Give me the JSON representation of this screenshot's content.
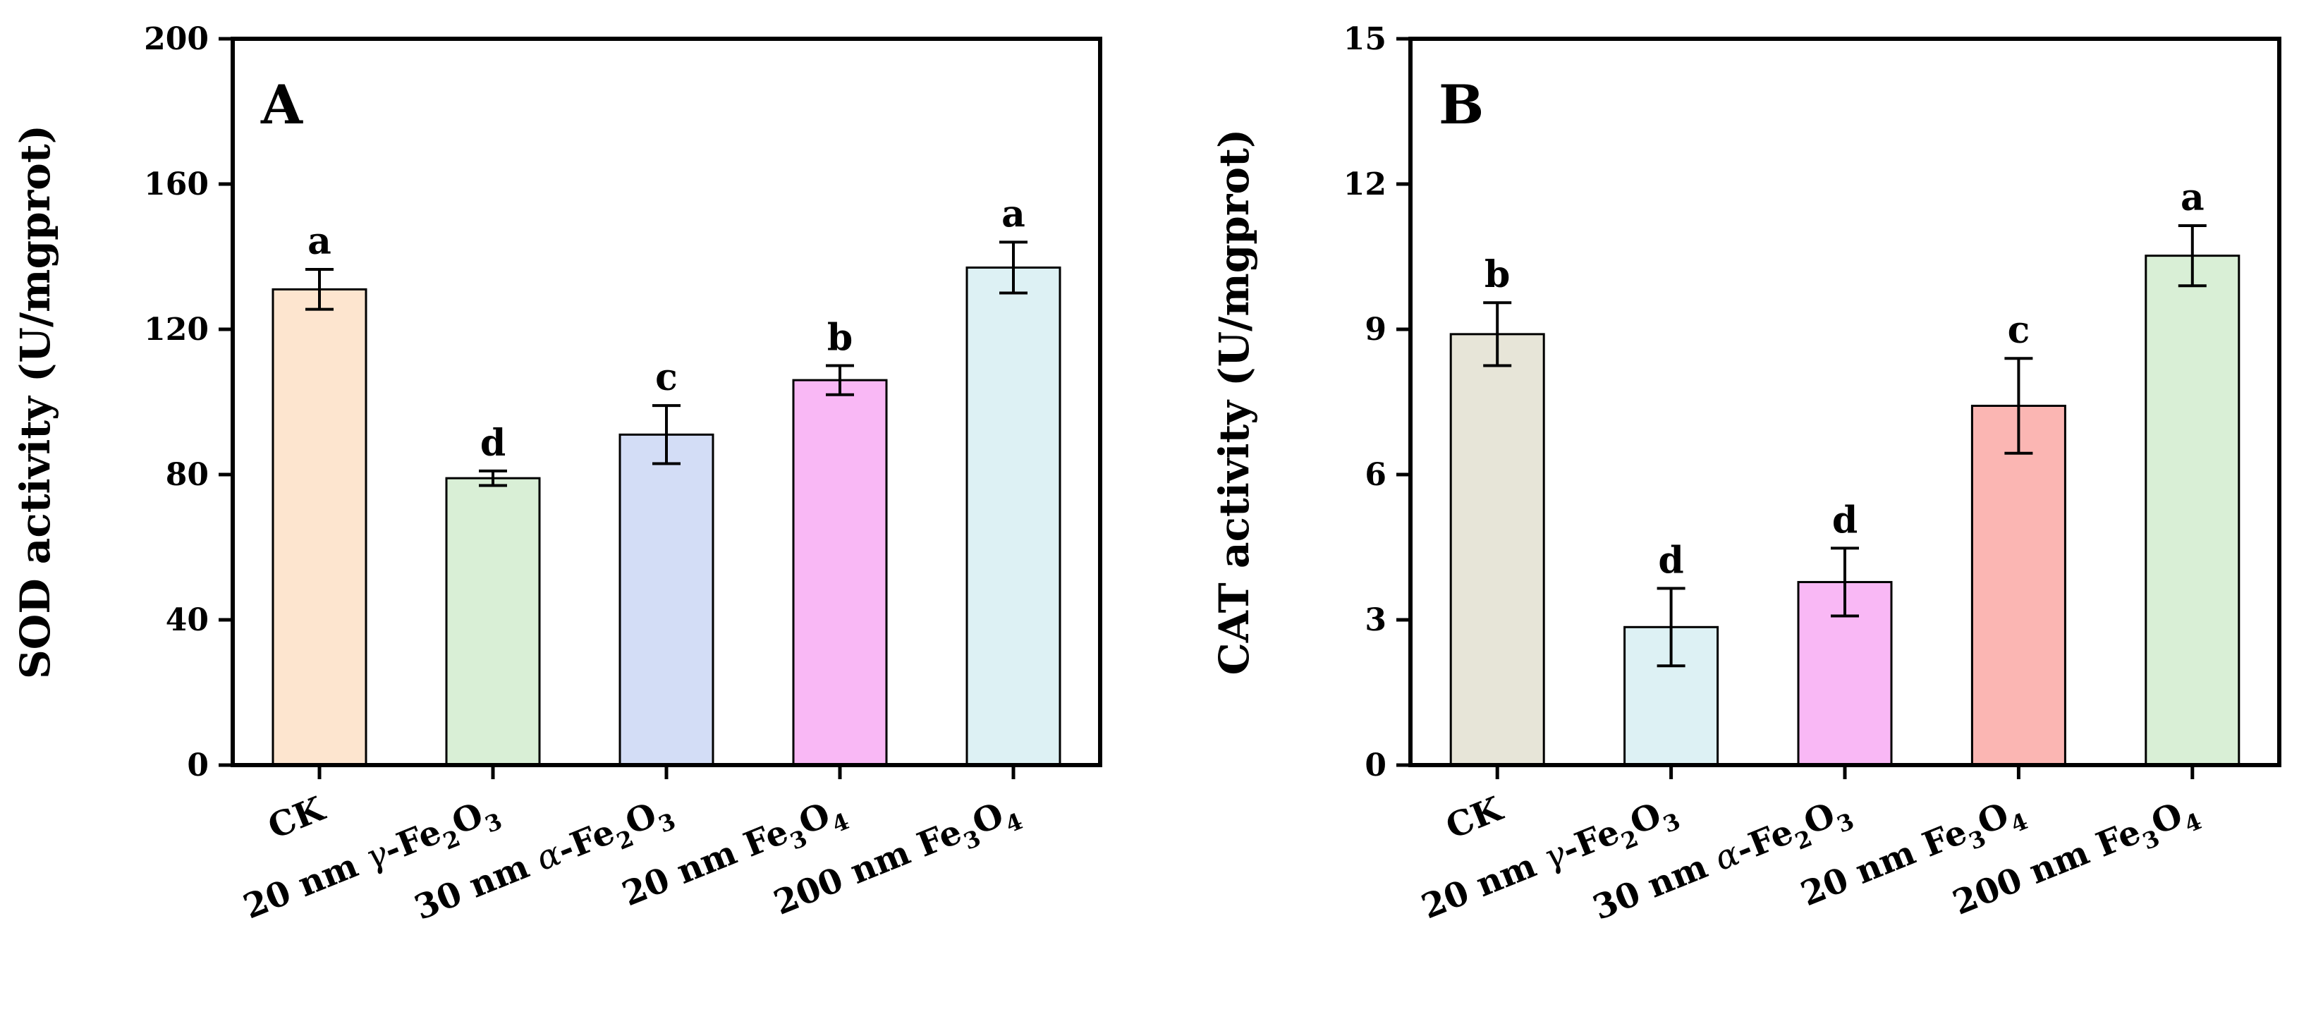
{
  "chart_data": [
    {
      "type": "bar",
      "panel_label": "A",
      "ylabel": "SOD activity (U/mgprot)",
      "xlabel": "",
      "ylim": [
        0,
        200
      ],
      "yticks": [
        "0",
        "40",
        "80",
        "120",
        "160",
        "200"
      ],
      "categories": [
        {
          "label": "CK"
        },
        {
          "label": "20 nm γ-Fe₂O₃",
          "pre": "20 nm ",
          "greek": "γ",
          "parts": [
            {
              "t": "-Fe"
            },
            {
              "t": "2",
              "sub": true
            },
            {
              "t": "O"
            },
            {
              "t": "3",
              "sub": true
            }
          ]
        },
        {
          "label": "30 nm α-Fe₂O₃",
          "pre": "30 nm ",
          "greek": "α",
          "parts": [
            {
              "t": "-Fe"
            },
            {
              "t": "2",
              "sub": true
            },
            {
              "t": "O"
            },
            {
              "t": "3",
              "sub": true
            }
          ]
        },
        {
          "label": "20 nm Fe₃O₄",
          "pre": "20 nm ",
          "greek": "",
          "parts": [
            {
              "t": "Fe"
            },
            {
              "t": "3",
              "sub": true
            },
            {
              "t": "O"
            },
            {
              "t": "4",
              "sub": true
            }
          ]
        },
        {
          "label": "200 nm Fe₃O₄",
          "pre": "200 nm ",
          "greek": "",
          "parts": [
            {
              "t": "Fe"
            },
            {
              "t": "3",
              "sub": true
            },
            {
              "t": "O"
            },
            {
              "t": "4",
              "sub": true
            }
          ]
        }
      ],
      "values": [
        131,
        79,
        91,
        106,
        137
      ],
      "errors": [
        5.5,
        2,
        8,
        4,
        7
      ],
      "significance": [
        "a",
        "d",
        "c",
        "b",
        "a"
      ],
      "colors": [
        "#fde5cf",
        "#d9efd6",
        "#d3ddf6",
        "#f9b8f5",
        "#ddf1f4"
      ]
    },
    {
      "type": "bar",
      "panel_label": "B",
      "ylabel": "CAT activity (U/mgprot)",
      "xlabel": "",
      "ylim": [
        0,
        15
      ],
      "yticks": [
        "0",
        "3",
        "6",
        "9",
        "12",
        "15"
      ],
      "categories": [
        {
          "label": "CK"
        },
        {
          "label": "20 nm γ-Fe₂O₃",
          "pre": "20 nm ",
          "greek": "γ",
          "parts": [
            {
              "t": "-Fe"
            },
            {
              "t": "2",
              "sub": true
            },
            {
              "t": "O"
            },
            {
              "t": "3",
              "sub": true
            }
          ]
        },
        {
          "label": "30 nm α-Fe₂O₃",
          "pre": "30 nm ",
          "greek": "α",
          "parts": [
            {
              "t": "-Fe"
            },
            {
              "t": "2",
              "sub": true
            },
            {
              "t": "O"
            },
            {
              "t": "3",
              "sub": true
            }
          ]
        },
        {
          "label": "20 nm Fe₃O₄",
          "pre": "20 nm ",
          "greek": "",
          "parts": [
            {
              "t": "Fe"
            },
            {
              "t": "3",
              "sub": true
            },
            {
              "t": "O"
            },
            {
              "t": "4",
              "sub": true
            }
          ]
        },
        {
          "label": "200 nm Fe₃O₄",
          "pre": "200 nm ",
          "greek": "",
          "parts": [
            {
              "t": "Fe"
            },
            {
              "t": "3",
              "sub": true
            },
            {
              "t": "O"
            },
            {
              "t": "4",
              "sub": true
            }
          ]
        }
      ],
      "values": [
        8.9,
        2.85,
        3.78,
        7.42,
        10.52
      ],
      "errors": [
        0.65,
        0.8,
        0.7,
        0.98,
        0.62
      ],
      "significance": [
        "b",
        "d",
        "d",
        "c",
        "a"
      ],
      "colors": [
        "#e7e5d8",
        "#ddf1f4",
        "#f9b8f5",
        "#fbb6b3",
        "#d9efd6"
      ]
    }
  ]
}
